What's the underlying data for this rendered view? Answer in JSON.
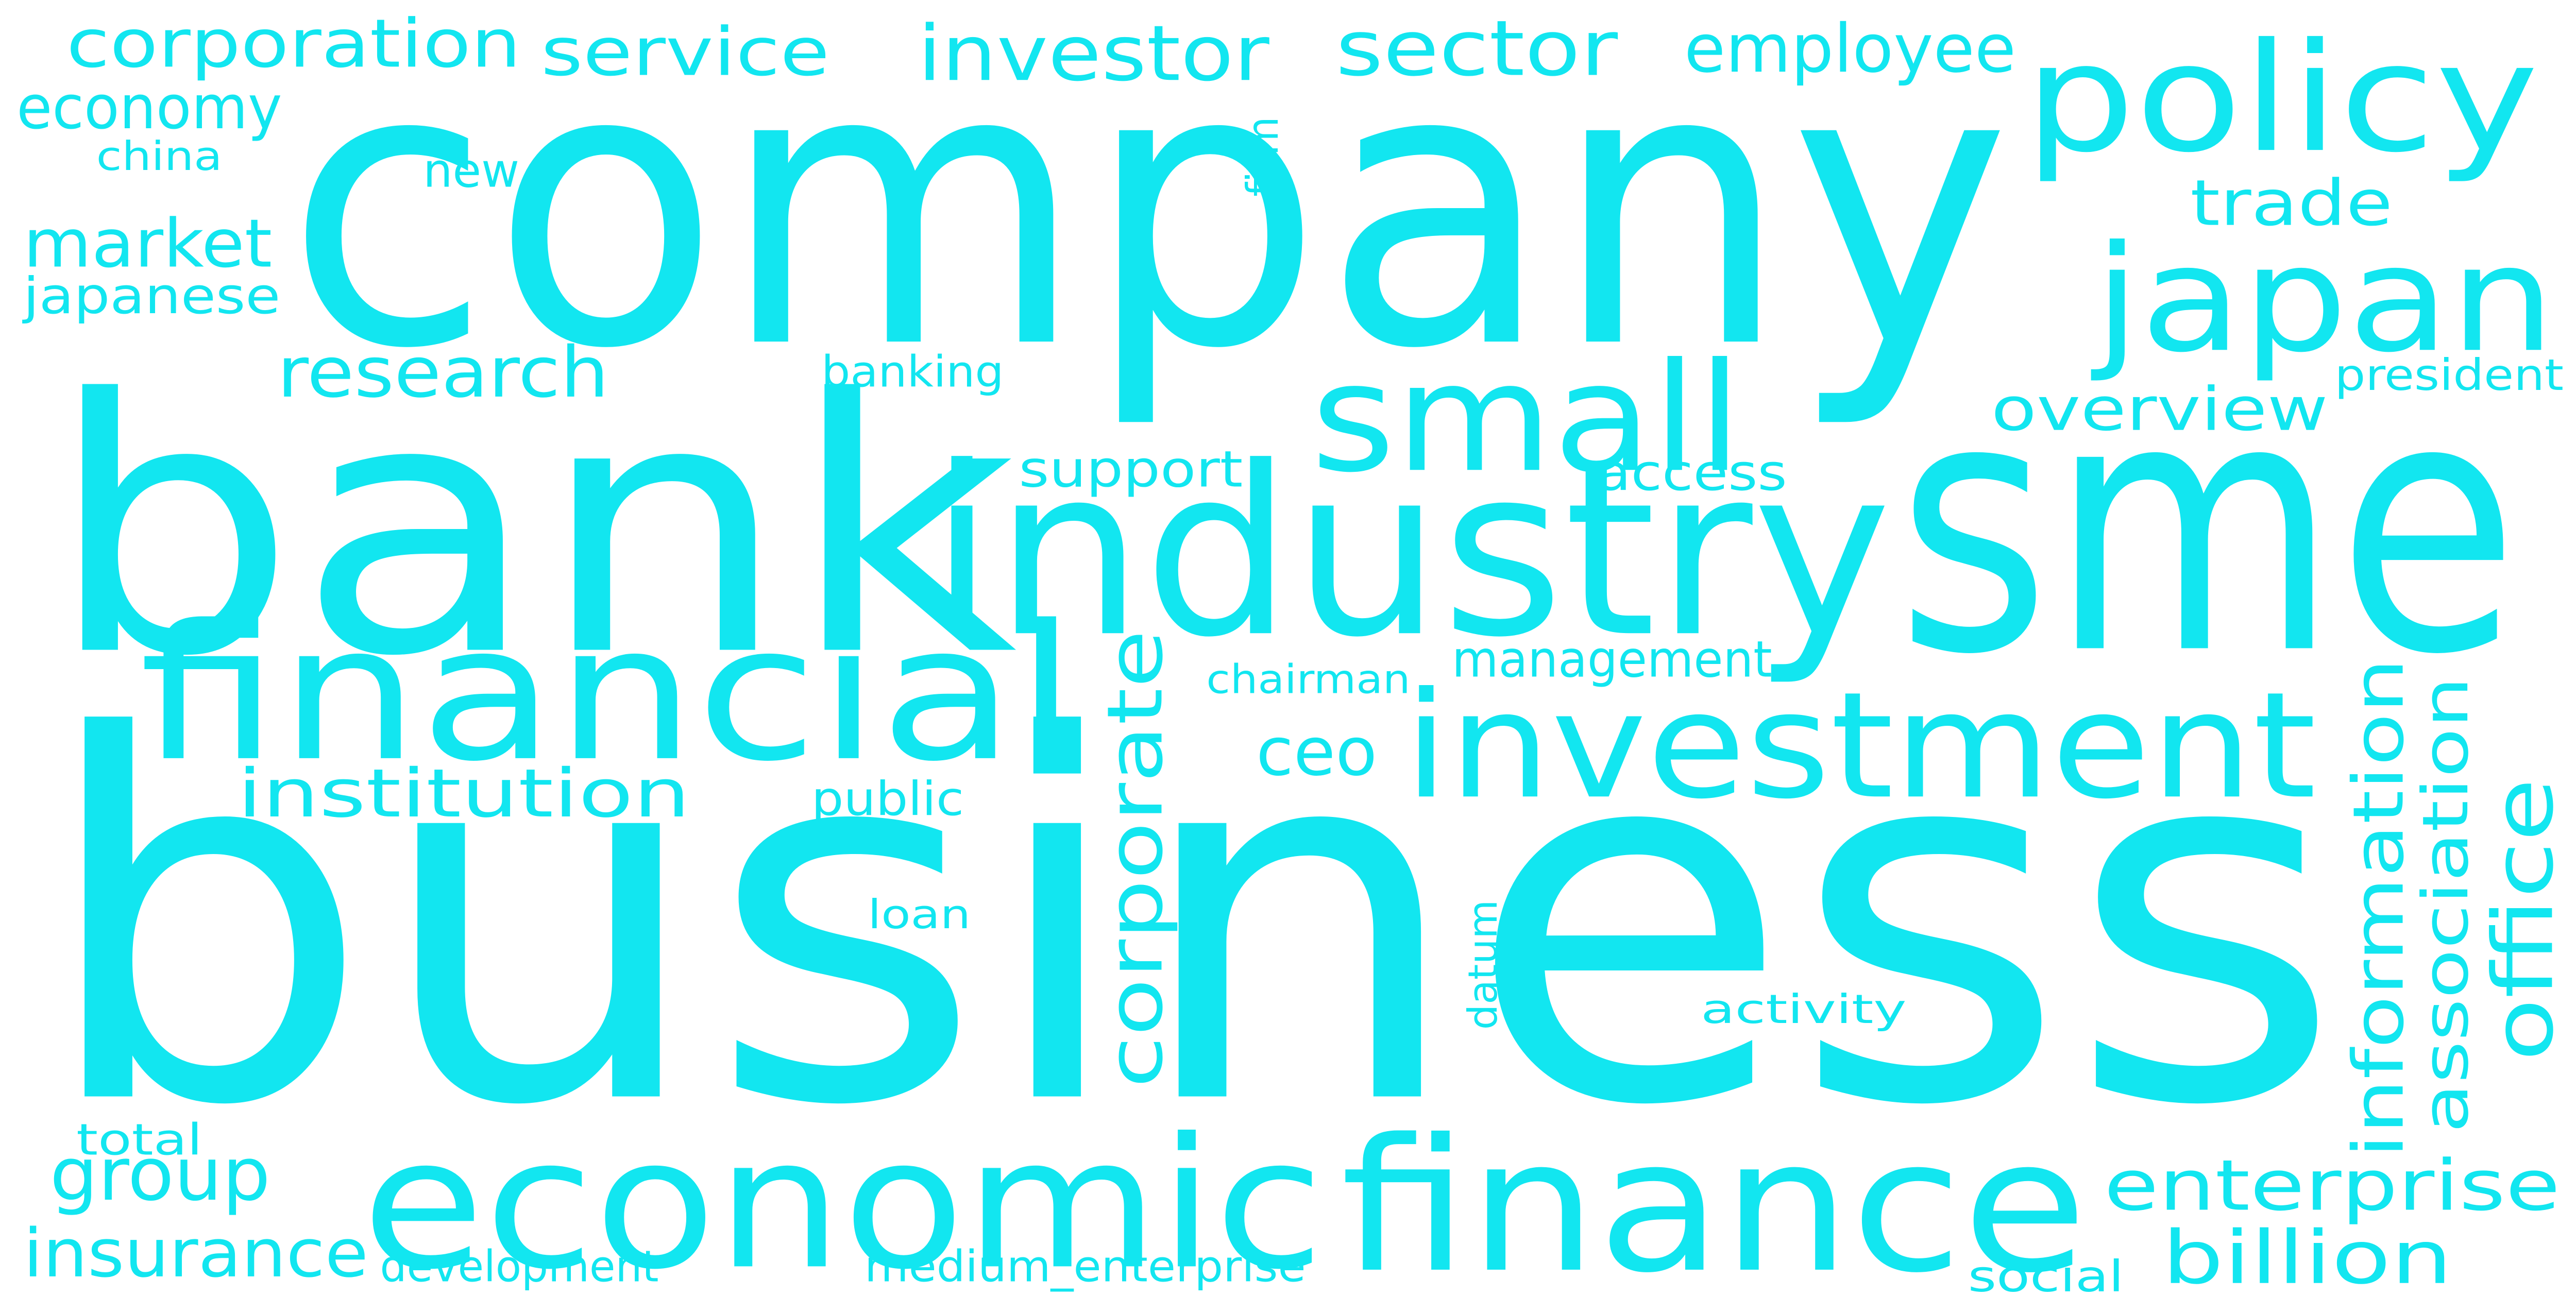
{
  "word_color": "#12E6F0",
  "background_color": "#FFFFFF",
  "words": [
    {
      "text": "business"
    },
    {
      "text": "company"
    },
    {
      "text": "bank"
    },
    {
      "text": "sme"
    },
    {
      "text": "industry"
    },
    {
      "text": "financial"
    },
    {
      "text": "economic"
    },
    {
      "text": "finance"
    },
    {
      "text": "investment"
    },
    {
      "text": "japan"
    },
    {
      "text": "policy"
    },
    {
      "text": "small"
    },
    {
      "text": "investor"
    },
    {
      "text": "sector"
    },
    {
      "text": "corporation"
    },
    {
      "text": "service"
    },
    {
      "text": "employee"
    },
    {
      "text": "economy"
    },
    {
      "text": "china"
    },
    {
      "text": "new"
    },
    {
      "text": "firm"
    },
    {
      "text": "trade"
    },
    {
      "text": "market"
    },
    {
      "text": "japanese"
    },
    {
      "text": "research"
    },
    {
      "text": "banking"
    },
    {
      "text": "president"
    },
    {
      "text": "overview"
    },
    {
      "text": "support"
    },
    {
      "text": "access"
    },
    {
      "text": "chairman"
    },
    {
      "text": "management"
    },
    {
      "text": "institution"
    },
    {
      "text": "ceo"
    },
    {
      "text": "corporate"
    },
    {
      "text": "public"
    },
    {
      "text": "information"
    },
    {
      "text": "association"
    },
    {
      "text": "office"
    },
    {
      "text": "loan"
    },
    {
      "text": "datum"
    },
    {
      "text": "activity"
    },
    {
      "text": "group"
    },
    {
      "text": "enterprise"
    },
    {
      "text": "total"
    },
    {
      "text": "insurance"
    },
    {
      "text": "development"
    },
    {
      "text": "medium_enterprise"
    },
    {
      "text": "social"
    },
    {
      "text": "billion"
    }
  ]
}
